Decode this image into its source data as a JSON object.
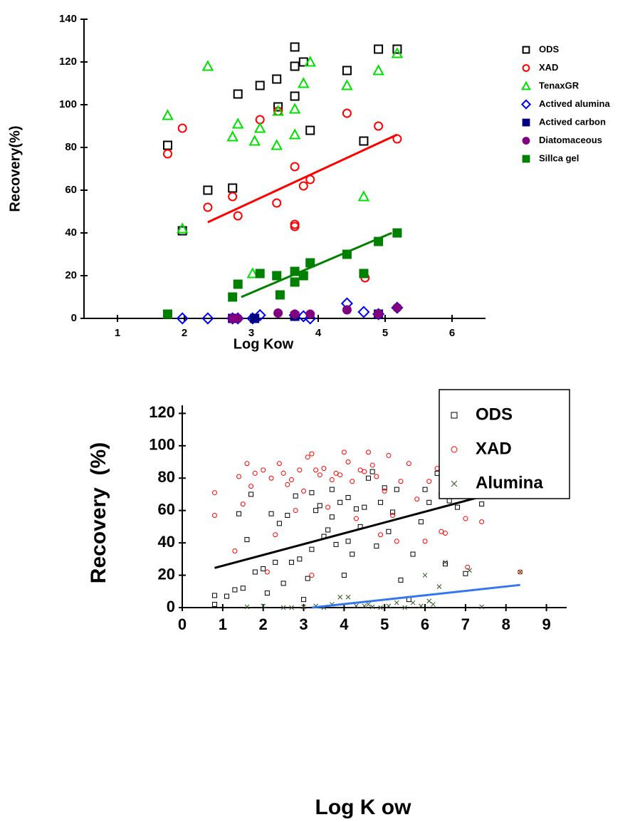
{
  "chart_data": [
    {
      "type": "scatter",
      "x_label": "Log Kow",
      "y_label": "Recovery(%)",
      "xlim": [
        0.5,
        6.5
      ],
      "ylim": [
        0,
        140
      ],
      "xticks": [
        1,
        2,
        3,
        4,
        5,
        6
      ],
      "yticks": [
        0,
        20,
        40,
        60,
        80,
        100,
        120,
        140
      ],
      "legend": "right",
      "series": [
        {
          "name": "ODS",
          "color": "#000000",
          "marker": "square",
          "filled": false,
          "x": [
            1.75,
            1.97,
            2.35,
            2.72,
            2.8,
            3.13,
            3.4,
            3.38,
            3.65,
            3.65,
            3.65,
            3.78,
            3.88,
            4.43,
            4.68,
            4.9,
            5.18
          ],
          "values": [
            81,
            41,
            60,
            61,
            105,
            109,
            99,
            112,
            127,
            118,
            104,
            120,
            88,
            116,
            83,
            126,
            126
          ]
        },
        {
          "name": "XAD",
          "color": "#ff0000",
          "marker": "circle",
          "filled": false,
          "x": [
            1.75,
            1.97,
            2.35,
            2.72,
            2.8,
            3.13,
            3.38,
            3.4,
            3.65,
            3.65,
            3.65,
            3.78,
            3.88,
            4.43,
            4.7,
            4.9,
            5.18
          ],
          "values": [
            77,
            89,
            52,
            57,
            48,
            93,
            54,
            97,
            71,
            44,
            43,
            62,
            65,
            96,
            19,
            90,
            84
          ]
        },
        {
          "name": "TenaxGR",
          "color": "#00e000",
          "marker": "triangle",
          "filled": false,
          "x": [
            1.75,
            1.97,
            2.35,
            2.72,
            2.8,
            3.02,
            3.05,
            3.13,
            3.38,
            3.4,
            3.65,
            3.65,
            3.78,
            3.88,
            4.43,
            4.68,
            4.9,
            5.18
          ],
          "values": [
            95,
            42,
            118,
            85,
            91,
            21,
            83,
            89,
            81,
            97,
            86,
            98,
            110,
            120,
            109,
            57,
            116,
            124
          ]
        },
        {
          "name": "Actived alumina",
          "color": "#0000ff",
          "marker": "diamond",
          "filled": false,
          "x": [
            1.97,
            2.35,
            2.72,
            2.8,
            3.02,
            3.13,
            3.65,
            3.78,
            3.88,
            4.43,
            4.68,
            4.9,
            5.18
          ],
          "values": [
            0,
            0,
            0,
            0,
            0,
            1.5,
            1.5,
            1,
            0,
            7,
            3,
            2,
            5
          ]
        },
        {
          "name": "Actived carbon",
          "color": "#000080",
          "marker": "square",
          "filled": true,
          "x": [
            2.72,
            3.05,
            3.65,
            4.9
          ],
          "values": [
            0,
            0,
            1,
            2
          ]
        },
        {
          "name": "Diatomaceous",
          "color": "#800080",
          "marker": "circle",
          "filled": true,
          "x": [
            2.72,
            2.8,
            3.4,
            3.65,
            3.88,
            4.43,
            4.9,
            5.18
          ],
          "values": [
            0,
            0,
            2.5,
            2,
            2,
            4,
            2,
            5
          ]
        },
        {
          "name": "Sillca gel",
          "color": "#008000",
          "marker": "square",
          "filled": true,
          "x": [
            1.75,
            2.72,
            2.8,
            3.13,
            3.38,
            3.43,
            3.65,
            3.65,
            3.78,
            3.88,
            4.43,
            4.68,
            4.9,
            5.18
          ],
          "values": [
            2,
            10,
            16,
            21,
            20,
            11,
            22,
            17,
            20,
            26,
            30,
            21,
            36,
            40
          ]
        }
      ],
      "fit_lines": [
        {
          "color": "#ff0000",
          "x": [
            2.35,
            5.18
          ],
          "y": [
            45,
            86
          ]
        },
        {
          "color": "#008000",
          "x": [
            2.85,
            5.1
          ],
          "y": [
            10,
            40
          ]
        }
      ]
    },
    {
      "type": "scatter",
      "x_label": "Log K ow",
      "y_label": "Recovery  (%)",
      "xlim": [
        0,
        9.5
      ],
      "ylim": [
        0,
        125
      ],
      "xticks": [
        0,
        1,
        2,
        3,
        4,
        5,
        6,
        7,
        8,
        9
      ],
      "yticks": [
        0,
        20,
        40,
        60,
        80,
        100,
        120
      ],
      "legend": "upper right",
      "series": [
        {
          "name": "ODS",
          "color": "#000000",
          "marker": "square",
          "filled": false,
          "x": [
            0.8,
            0.8,
            1.1,
            1.3,
            1.4,
            1.5,
            1.6,
            1.7,
            1.8,
            2.0,
            2.1,
            2.2,
            2.3,
            2.4,
            2.5,
            2.6,
            2.7,
            2.8,
            2.9,
            3.0,
            3.1,
            3.2,
            3.2,
            3.3,
            3.4,
            3.5,
            3.6,
            3.7,
            3.7,
            3.8,
            3.9,
            4.0,
            4.1,
            4.1,
            4.2,
            4.3,
            4.4,
            4.5,
            4.6,
            4.7,
            4.8,
            4.9,
            5.0,
            5.1,
            5.2,
            5.3,
            5.4,
            5.6,
            5.7,
            5.9,
            6.0,
            6.1,
            6.3,
            6.4,
            6.5,
            6.6,
            6.8,
            7.0,
            7.05,
            7.4,
            8.35
          ],
          "values": [
            2,
            7.5,
            7,
            11,
            58,
            12,
            42,
            70,
            22,
            24,
            9,
            58,
            28,
            52,
            15,
            57,
            28,
            69,
            30,
            5,
            18,
            36,
            71,
            60,
            63,
            44,
            48,
            56,
            73,
            39,
            65,
            20,
            41,
            68,
            33,
            61,
            50,
            62,
            80,
            84,
            38,
            65,
            74,
            47,
            59,
            73,
            17,
            5,
            33,
            53,
            73,
            65,
            83,
            70,
            27,
            66,
            62,
            21,
            74,
            64,
            70
          ]
        },
        {
          "name": "XAD",
          "color": "#ff0000",
          "marker": "circle",
          "filled": false,
          "x": [
            0.8,
            0.8,
            1.3,
            1.4,
            1.5,
            1.6,
            1.7,
            1.8,
            2.0,
            2.1,
            2.2,
            2.3,
            2.4,
            2.5,
            2.6,
            2.7,
            2.8,
            2.9,
            3.0,
            3.1,
            3.2,
            3.2,
            3.3,
            3.4,
            3.5,
            3.6,
            3.7,
            3.8,
            3.9,
            4.0,
            4.1,
            4.2,
            4.3,
            4.4,
            4.5,
            4.6,
            4.7,
            4.8,
            4.9,
            5.0,
            5.1,
            5.2,
            5.3,
            5.4,
            5.6,
            5.8,
            6.0,
            6.1,
            6.3,
            6.4,
            6.5,
            6.6,
            7.0,
            7.05,
            7.4,
            8.35
          ],
          "values": [
            71,
            57,
            35,
            81,
            64,
            89,
            75,
            83,
            85,
            22,
            80,
            45,
            89,
            83,
            76,
            79,
            60,
            85,
            72,
            93,
            95,
            20,
            85,
            82,
            86,
            62,
            79,
            83,
            82,
            96,
            90,
            78,
            55,
            85,
            84,
            96,
            88,
            81,
            45,
            72,
            94,
            57,
            41,
            78,
            89,
            67,
            41,
            78,
            86,
            47,
            46,
            79,
            55,
            25,
            53,
            22
          ]
        },
        {
          "name": "Alumina",
          "color": "#335522",
          "marker": "cross",
          "filled": false,
          "x": [
            1.6,
            2.0,
            2.5,
            2.7,
            3.0,
            3.3,
            3.5,
            3.7,
            3.9,
            4.1,
            4.3,
            4.5,
            4.6,
            4.7,
            4.9,
            5.1,
            5.3,
            5.5,
            5.7,
            5.9,
            6.0,
            6.1,
            6.2,
            6.35,
            6.5,
            7.1,
            7.4,
            8.35
          ],
          "values": [
            0.5,
            1,
            0,
            0,
            0.5,
            1,
            0,
            2,
            6.5,
            6.5,
            1,
            1,
            2,
            0.5,
            0,
            1,
            3,
            0,
            3,
            1,
            20,
            4,
            2,
            13,
            28,
            23,
            0.5,
            22
          ]
        }
      ],
      "fit_lines": [
        {
          "color": "#000000",
          "x": [
            0.8,
            8.35
          ],
          "y": [
            24.5,
            75
          ]
        },
        {
          "color": "#3377ee",
          "x": [
            3.2,
            8.35
          ],
          "y": [
            0,
            14
          ]
        }
      ]
    }
  ]
}
